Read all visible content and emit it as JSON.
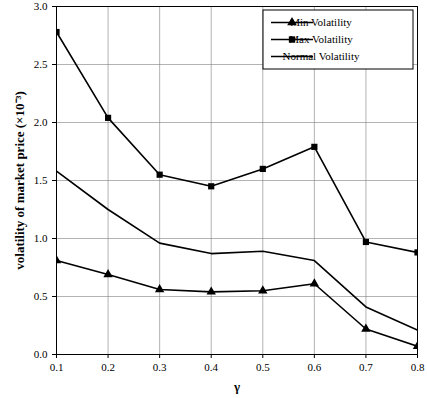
{
  "chart_data": {
    "type": "line",
    "x_label": "γ",
    "y_label": "volatility of market price (×10⁻³)",
    "x": [
      0.1,
      0.2,
      0.3,
      0.4,
      0.5,
      0.6,
      0.7,
      0.8
    ],
    "series": [
      {
        "name": "Min Volatility",
        "color": "#000000",
        "marker": "triangle",
        "line_style": "solid",
        "values": [
          0.81,
          0.69,
          0.56,
          0.54,
          0.55,
          0.61,
          0.22,
          0.07
        ]
      },
      {
        "name": "Max Volatility",
        "color": "#000000",
        "marker": "square",
        "line_style": "solid",
        "values": [
          2.78,
          2.04,
          1.55,
          1.45,
          1.6,
          1.79,
          0.97,
          0.88
        ]
      },
      {
        "name": "Normal Volatility",
        "color": "#000000",
        "marker": "none",
        "line_style": "solid",
        "values": [
          1.58,
          1.25,
          0.96,
          0.87,
          0.89,
          0.81,
          0.41,
          0.21
        ]
      }
    ],
    "xlim": [
      0.1,
      0.8
    ],
    "xticks": [
      0.1,
      0.2,
      0.3,
      0.4,
      0.5,
      0.6,
      0.7,
      0.8
    ],
    "ylim": [
      0,
      3
    ],
    "yticks": [
      {
        "value": 0,
        "label": "0.0"
      },
      0.5,
      {
        "value": 1,
        "label": "1.0"
      },
      1.5,
      {
        "value": 2,
        "label": "2.0"
      },
      2.5,
      {
        "value": 3,
        "label": "3.0"
      }
    ],
    "grid": true,
    "legend": "top-right"
  }
}
